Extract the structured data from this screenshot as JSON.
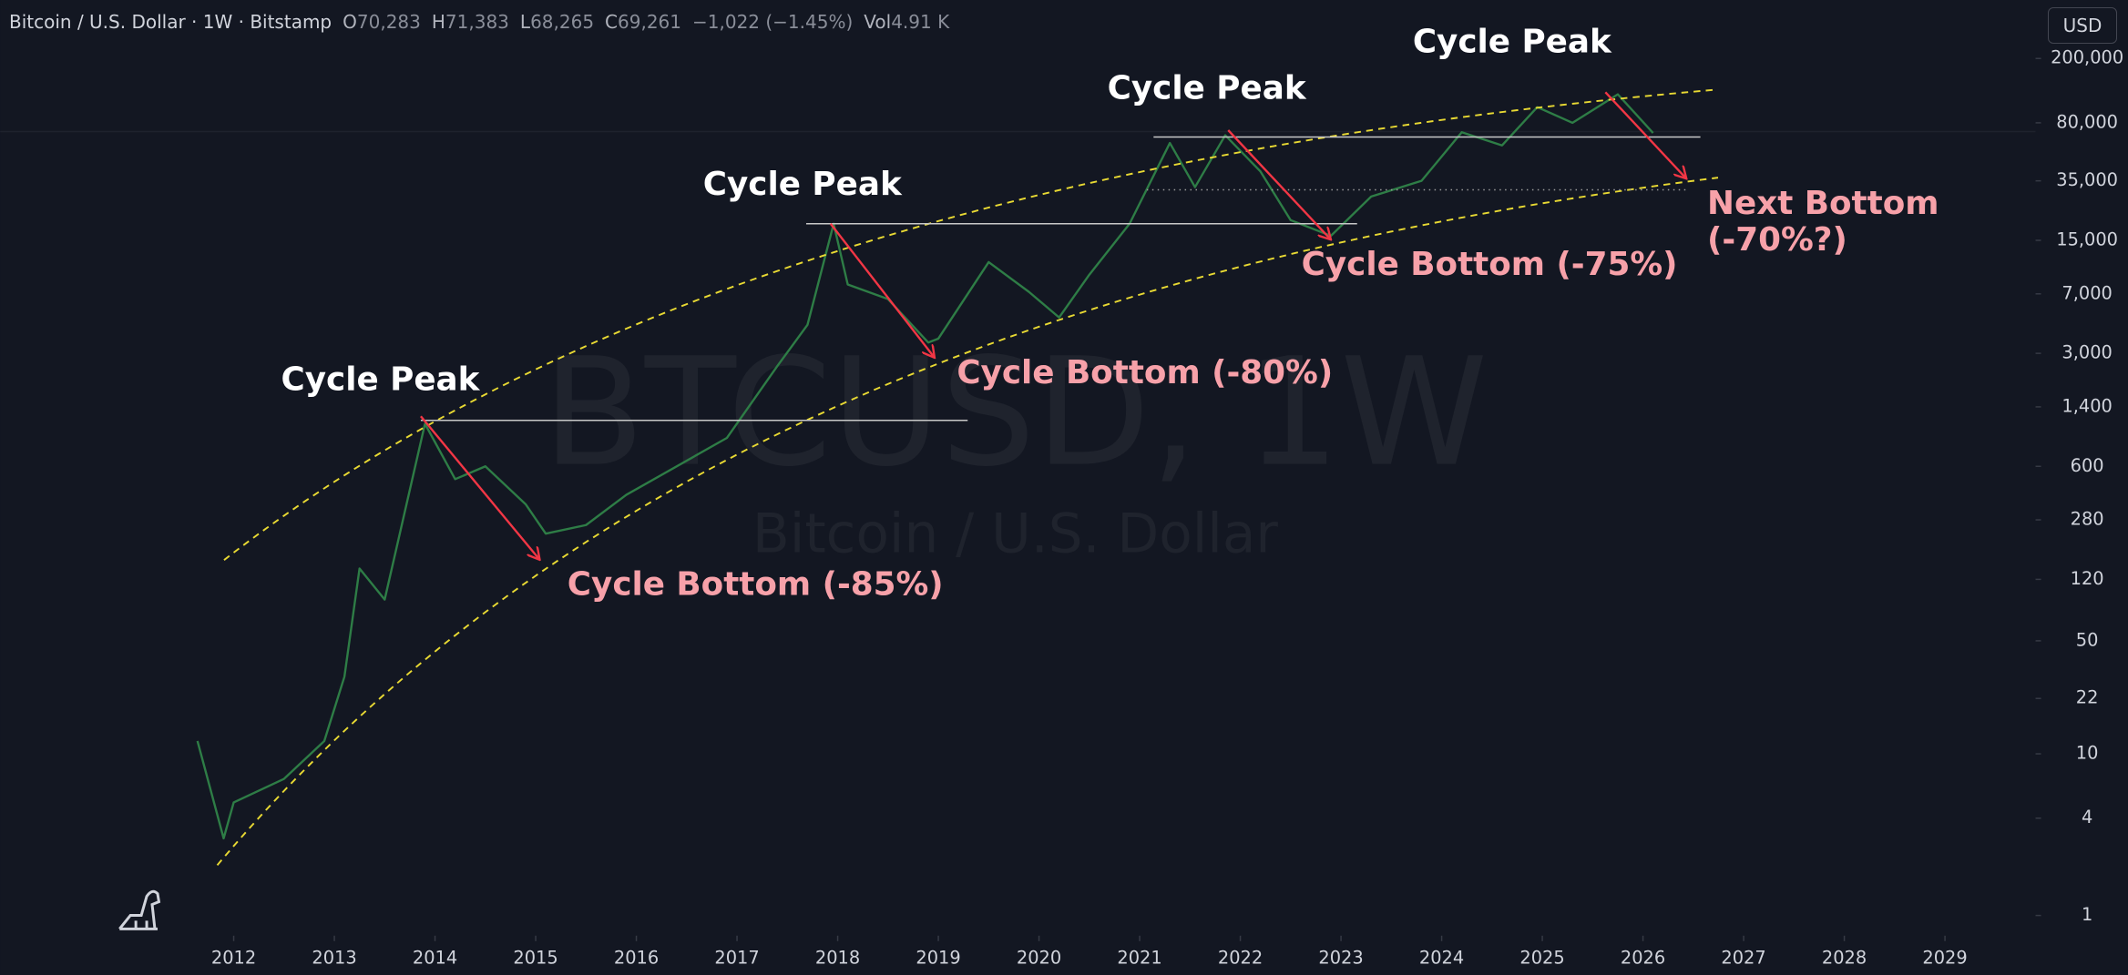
{
  "header": {
    "symbol": "Bitcoin / U.S. Dollar · 1W · Bitstamp",
    "o_label": "O",
    "o": "70,283",
    "h_label": "H",
    "h": "71,383",
    "l_label": "L",
    "l": "68,265",
    "c_label": "C",
    "c": "69,261",
    "change": "−1,022 (−1.45%)",
    "vol_label": "Vol",
    "vol": "4.91 K"
  },
  "currency": "USD",
  "watermark": {
    "ticker": "BTCUSD, 1W",
    "name": "Bitcoin / U.S. Dollar"
  },
  "chart_data": {
    "type": "line",
    "log_scale": true,
    "color": "#2e7d46",
    "x": [
      2011.64,
      2011.9,
      2012.0,
      2012.5,
      2012.9,
      2013.1,
      2013.25,
      2013.5,
      2013.9,
      2014.2,
      2014.5,
      2014.9,
      2015.1,
      2015.5,
      2015.9,
      2016.5,
      2016.9,
      2017.4,
      2017.7,
      2017.96,
      2018.1,
      2018.5,
      2018.9,
      2019.0,
      2019.5,
      2019.9,
      2020.2,
      2020.5,
      2020.9,
      2021.3,
      2021.55,
      2021.85,
      2022.2,
      2022.5,
      2022.9,
      2023.3,
      2023.8,
      2024.2,
      2024.6,
      2024.95,
      2025.3,
      2025.75,
      2026.1
    ],
    "values": [
      12,
      3,
      5,
      7,
      12,
      30,
      140,
      90,
      1100,
      500,
      600,
      350,
      230,
      260,
      400,
      650,
      900,
      2500,
      4500,
      19000,
      8000,
      6500,
      3500,
      3700,
      11000,
      7200,
      5000,
      9200,
      19000,
      60000,
      32000,
      67000,
      40000,
      20000,
      16000,
      28000,
      35000,
      70000,
      58000,
      100000,
      80000,
      120000,
      69261
    ],
    "xlim": [
      2009.68,
      2029.9
    ],
    "xticks": [
      2012,
      2013,
      2014,
      2015,
      2016,
      2017,
      2018,
      2019,
      2020,
      2021,
      2022,
      2023,
      2024,
      2025,
      2026,
      2027,
      2028,
      2029
    ],
    "ylim": [
      0.75,
      460000
    ],
    "yticks": [
      1,
      4,
      10,
      22,
      50,
      120,
      280,
      600,
      {
        "value": 1400,
        "label": "1,400"
      },
      {
        "value": 3000,
        "label": "3,000"
      },
      {
        "value": 7000,
        "label": "7,000"
      },
      {
        "value": 15000,
        "label": "15,000"
      },
      {
        "value": 35000,
        "label": "35,000"
      },
      {
        "value": 80000,
        "label": "80,000"
      },
      {
        "value": 200000,
        "label": "200,000"
      }
    ],
    "annotations": [
      "Cycle Peak",
      "Cycle Peak",
      "Cycle Peak",
      "Cycle Peak",
      "Cycle Bottom (-85%)",
      "Cycle Bottom (-80%)",
      "Cycle Bottom (-75%)",
      "Next Bottom",
      "(-70%?)"
    ]
  }
}
